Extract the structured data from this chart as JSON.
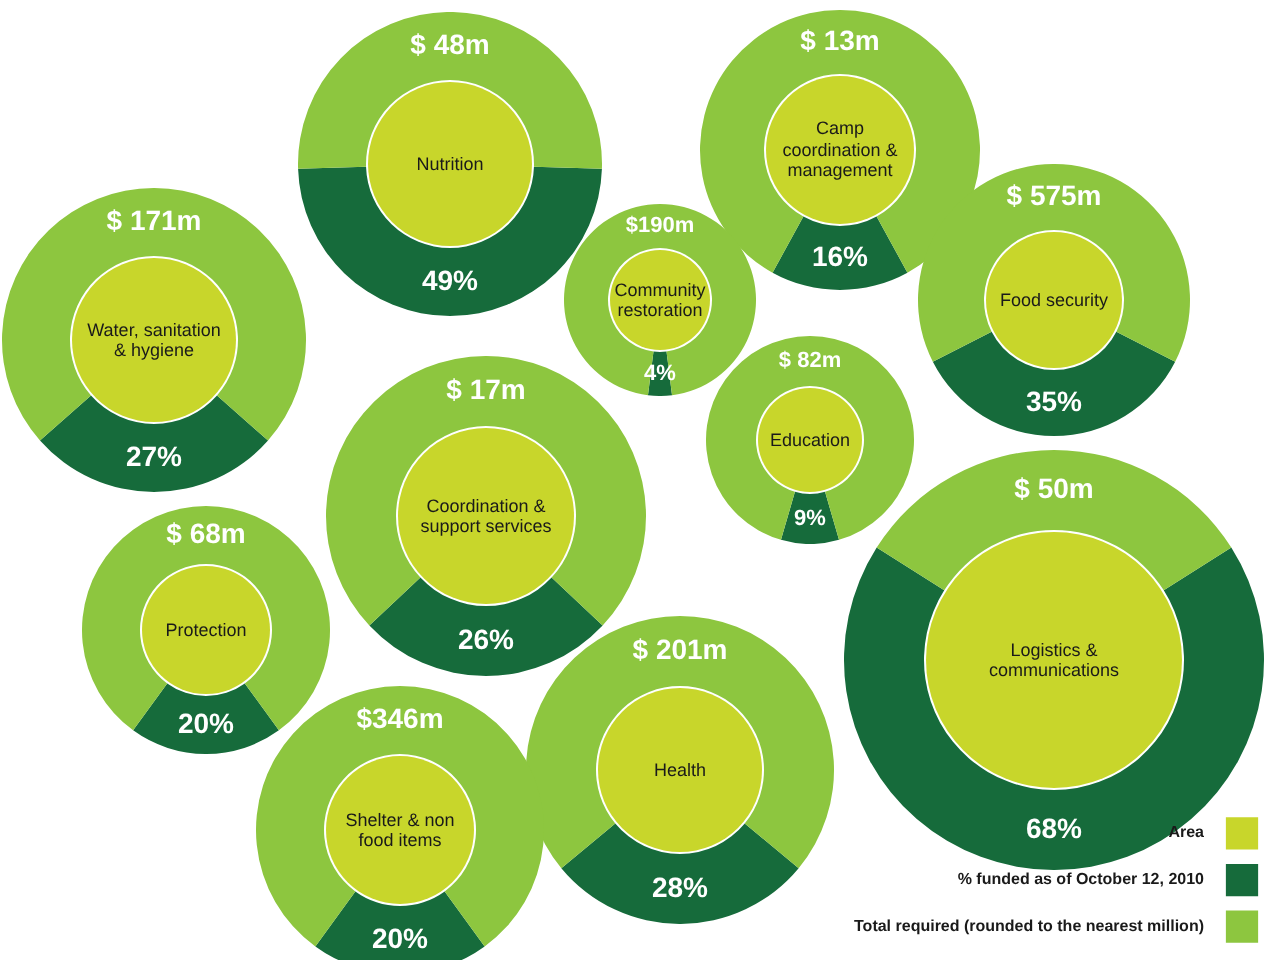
{
  "chart_data": [
    {
      "type": "donut",
      "title": "Nutrition",
      "categories": [
        null,
        null
      ],
      "values": [
        49,
        51
      ],
      "colors": [
        "#166b3b",
        "#8dc63f"
      ],
      "value_labels": [
        "49%",
        null
      ],
      "annotations": [
        "$ 48m"
      ]
    },
    {
      "type": "donut",
      "title": "Camp coordination & management",
      "categories": [
        null,
        null
      ],
      "values": [
        16,
        84
      ],
      "colors": [
        "#166b3b",
        "#8dc63f"
      ],
      "value_labels": [
        "16%",
        null
      ],
      "annotations": [
        "$ 13m"
      ]
    },
    {
      "type": "donut",
      "title": "Community restoration",
      "categories": [
        null,
        null
      ],
      "values": [
        4,
        96
      ],
      "colors": [
        "#166b3b",
        "#8dc63f"
      ],
      "value_labels": [
        "4%",
        null
      ],
      "annotations": [
        "$190m"
      ]
    },
    {
      "type": "donut",
      "title": "Water, sanitation & hygiene",
      "categories": [
        null,
        null
      ],
      "values": [
        27,
        73
      ],
      "colors": [
        "#166b3b",
        "#8dc63f"
      ],
      "value_labels": [
        "27%",
        null
      ],
      "annotations": [
        "$ 171m"
      ]
    },
    {
      "type": "donut",
      "title": "Food security",
      "categories": [
        null,
        null
      ],
      "values": [
        35,
        65
      ],
      "colors": [
        "#166b3b",
        "#8dc63f"
      ],
      "value_labels": [
        "35%",
        null
      ],
      "annotations": [
        "$ 575m"
      ]
    },
    {
      "type": "donut",
      "title": "Education",
      "categories": [
        null,
        null
      ],
      "values": [
        9,
        91
      ],
      "colors": [
        "#166b3b",
        "#8dc63f"
      ],
      "value_labels": [
        "9%",
        null
      ],
      "annotations": [
        "$ 82m"
      ]
    },
    {
      "type": "donut",
      "title": "Coordination & support services",
      "categories": [
        null,
        null
      ],
      "values": [
        26,
        74
      ],
      "colors": [
        "#166b3b",
        "#8dc63f"
      ],
      "value_labels": [
        "26%",
        null
      ],
      "annotations": [
        "$ 17m"
      ]
    },
    {
      "type": "donut",
      "title": "Protection",
      "categories": [
        null,
        null
      ],
      "values": [
        20,
        80
      ],
      "colors": [
        "#166b3b",
        "#8dc63f"
      ],
      "value_labels": [
        "20%",
        null
      ],
      "annotations": [
        "$ 68m"
      ]
    },
    {
      "type": "donut",
      "title": "Logistics & communications",
      "categories": [
        null,
        null
      ],
      "values": [
        68,
        32
      ],
      "colors": [
        "#166b3b",
        "#8dc63f"
      ],
      "value_labels": [
        "68%",
        null
      ],
      "annotations": [
        "$ 50m"
      ]
    },
    {
      "type": "donut",
      "title": "Health",
      "categories": [
        null,
        null
      ],
      "values": [
        28,
        72
      ],
      "colors": [
        "#166b3b",
        "#8dc63f"
      ],
      "value_labels": [
        "28%",
        null
      ],
      "annotations": [
        "$ 201m"
      ]
    },
    {
      "type": "donut",
      "title": "Shelter & non food items",
      "categories": [
        null,
        null
      ],
      "values": [
        20,
        80
      ],
      "colors": [
        "#166b3b",
        "#8dc63f"
      ],
      "value_labels": [
        "20%",
        null
      ],
      "annotations": [
        "$346m"
      ]
    },
    {
      "type": "other",
      "categories": [
        "Area",
        "% funded as of October 12, 2010",
        "Total required (rounded to the nearest million)"
      ],
      "colors": [
        "#c8d62b",
        "#166b3b",
        "#8dc63f"
      ]
    }
  ]
}
